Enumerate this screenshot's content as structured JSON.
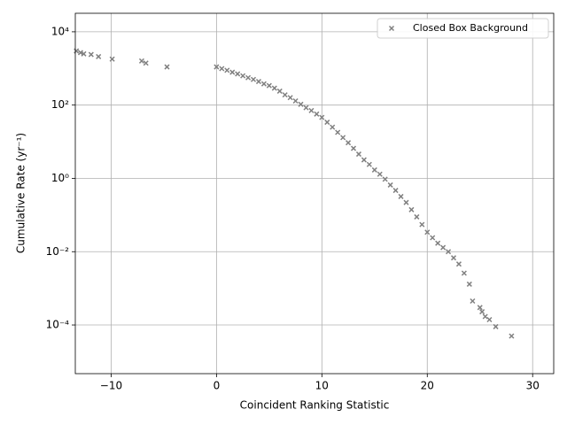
{
  "chart_data": {
    "type": "scatter",
    "x_label": "Coincident Ranking Statistic",
    "y_label": "Cumulative Rate (yr⁻¹)",
    "y_scale": "log",
    "grid": true,
    "legend": "upper right",
    "xlim": [
      -13.4,
      32.0
    ],
    "ylim": [
      4.7e-06,
      32000
    ],
    "xticks": [
      {
        "value": -10,
        "label": "−10"
      },
      0,
      10,
      20,
      30
    ],
    "yticks": [
      {
        "value": 0.0001,
        "label": "10⁻⁴"
      },
      {
        "value": 0.01,
        "label": "10⁻²"
      },
      {
        "value": 1,
        "label": "10⁰"
      },
      {
        "value": 100,
        "label": "10²"
      },
      {
        "value": 10000,
        "label": "10⁴"
      }
    ],
    "series": [
      {
        "name": "Closed Box Background",
        "color": "#808080",
        "x": [
          -13.3,
          -12.9,
          -12.6,
          -11.9,
          -11.2,
          -9.9,
          -7.1,
          -6.7,
          -4.7,
          0,
          0.5,
          1,
          1.5,
          2,
          2.5,
          3,
          3.5,
          4,
          4.5,
          5,
          5.5,
          6,
          6.5,
          7,
          7.5,
          8,
          8.5,
          9,
          9.5,
          10,
          10.5,
          11,
          11.5,
          12,
          12.5,
          13,
          13.5,
          14,
          14.5,
          15,
          15.5,
          16,
          16.5,
          17,
          17.5,
          18,
          18.5,
          19,
          19.5,
          20,
          20.5,
          21,
          21.5,
          22,
          22.5,
          23,
          23.5,
          24,
          24.3,
          25,
          25.2,
          25.5,
          25.9,
          26.5,
          28
        ],
        "values": [
          3000,
          2700,
          2500,
          2400,
          2100,
          1800,
          1600,
          1400,
          1100,
          1100,
          990,
          890,
          790,
          710,
          630,
          560,
          500,
          440,
          380,
          340,
          290,
          240,
          190,
          160,
          130,
          105,
          85,
          71,
          57,
          46,
          34,
          25,
          18,
          13,
          9.4,
          6.6,
          4.6,
          3.2,
          2.4,
          1.7,
          1.3,
          0.95,
          0.66,
          0.47,
          0.32,
          0.22,
          0.14,
          0.089,
          0.055,
          0.034,
          0.024,
          0.017,
          0.013,
          0.01,
          0.0068,
          0.0046,
          0.0026,
          0.0013,
          0.00045,
          0.0003,
          0.00023,
          0.00017,
          0.00014,
          9e-05,
          5e-05
        ]
      }
    ]
  }
}
